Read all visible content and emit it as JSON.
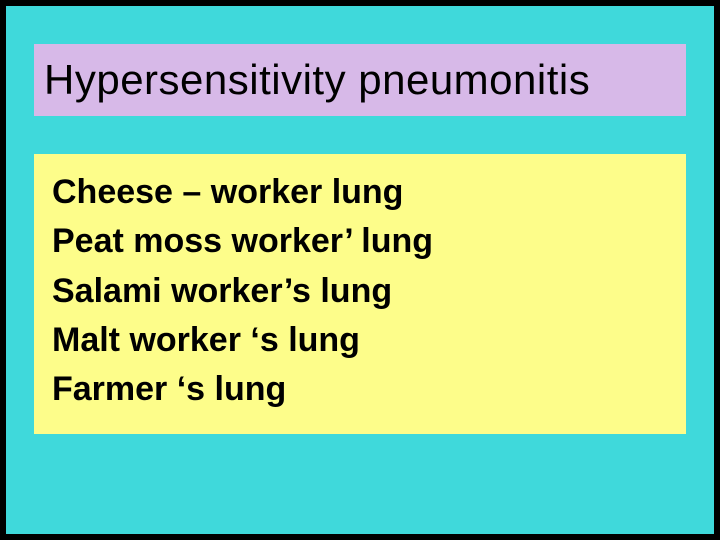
{
  "slide": {
    "background_color": "#3fd9db",
    "border_color": "#000000",
    "title": {
      "text": "Hypersensitivity  pneumonitis",
      "background_color": "#d7b9e8",
      "text_color": "#000000",
      "font_family": "Arial",
      "font_size_pt": 32,
      "font_weight": 400
    },
    "body": {
      "background_color": "#fdfd8a",
      "text_color": "#000000",
      "font_family": "Verdana",
      "font_size_pt": 26,
      "font_weight": 700,
      "lines": [
        "Cheese – worker  lung",
        "Peat  moss worker’ lung",
        "Salami worker’s lung",
        "Malt worker ‘s  lung",
        "Farmer ‘s lung"
      ]
    }
  }
}
